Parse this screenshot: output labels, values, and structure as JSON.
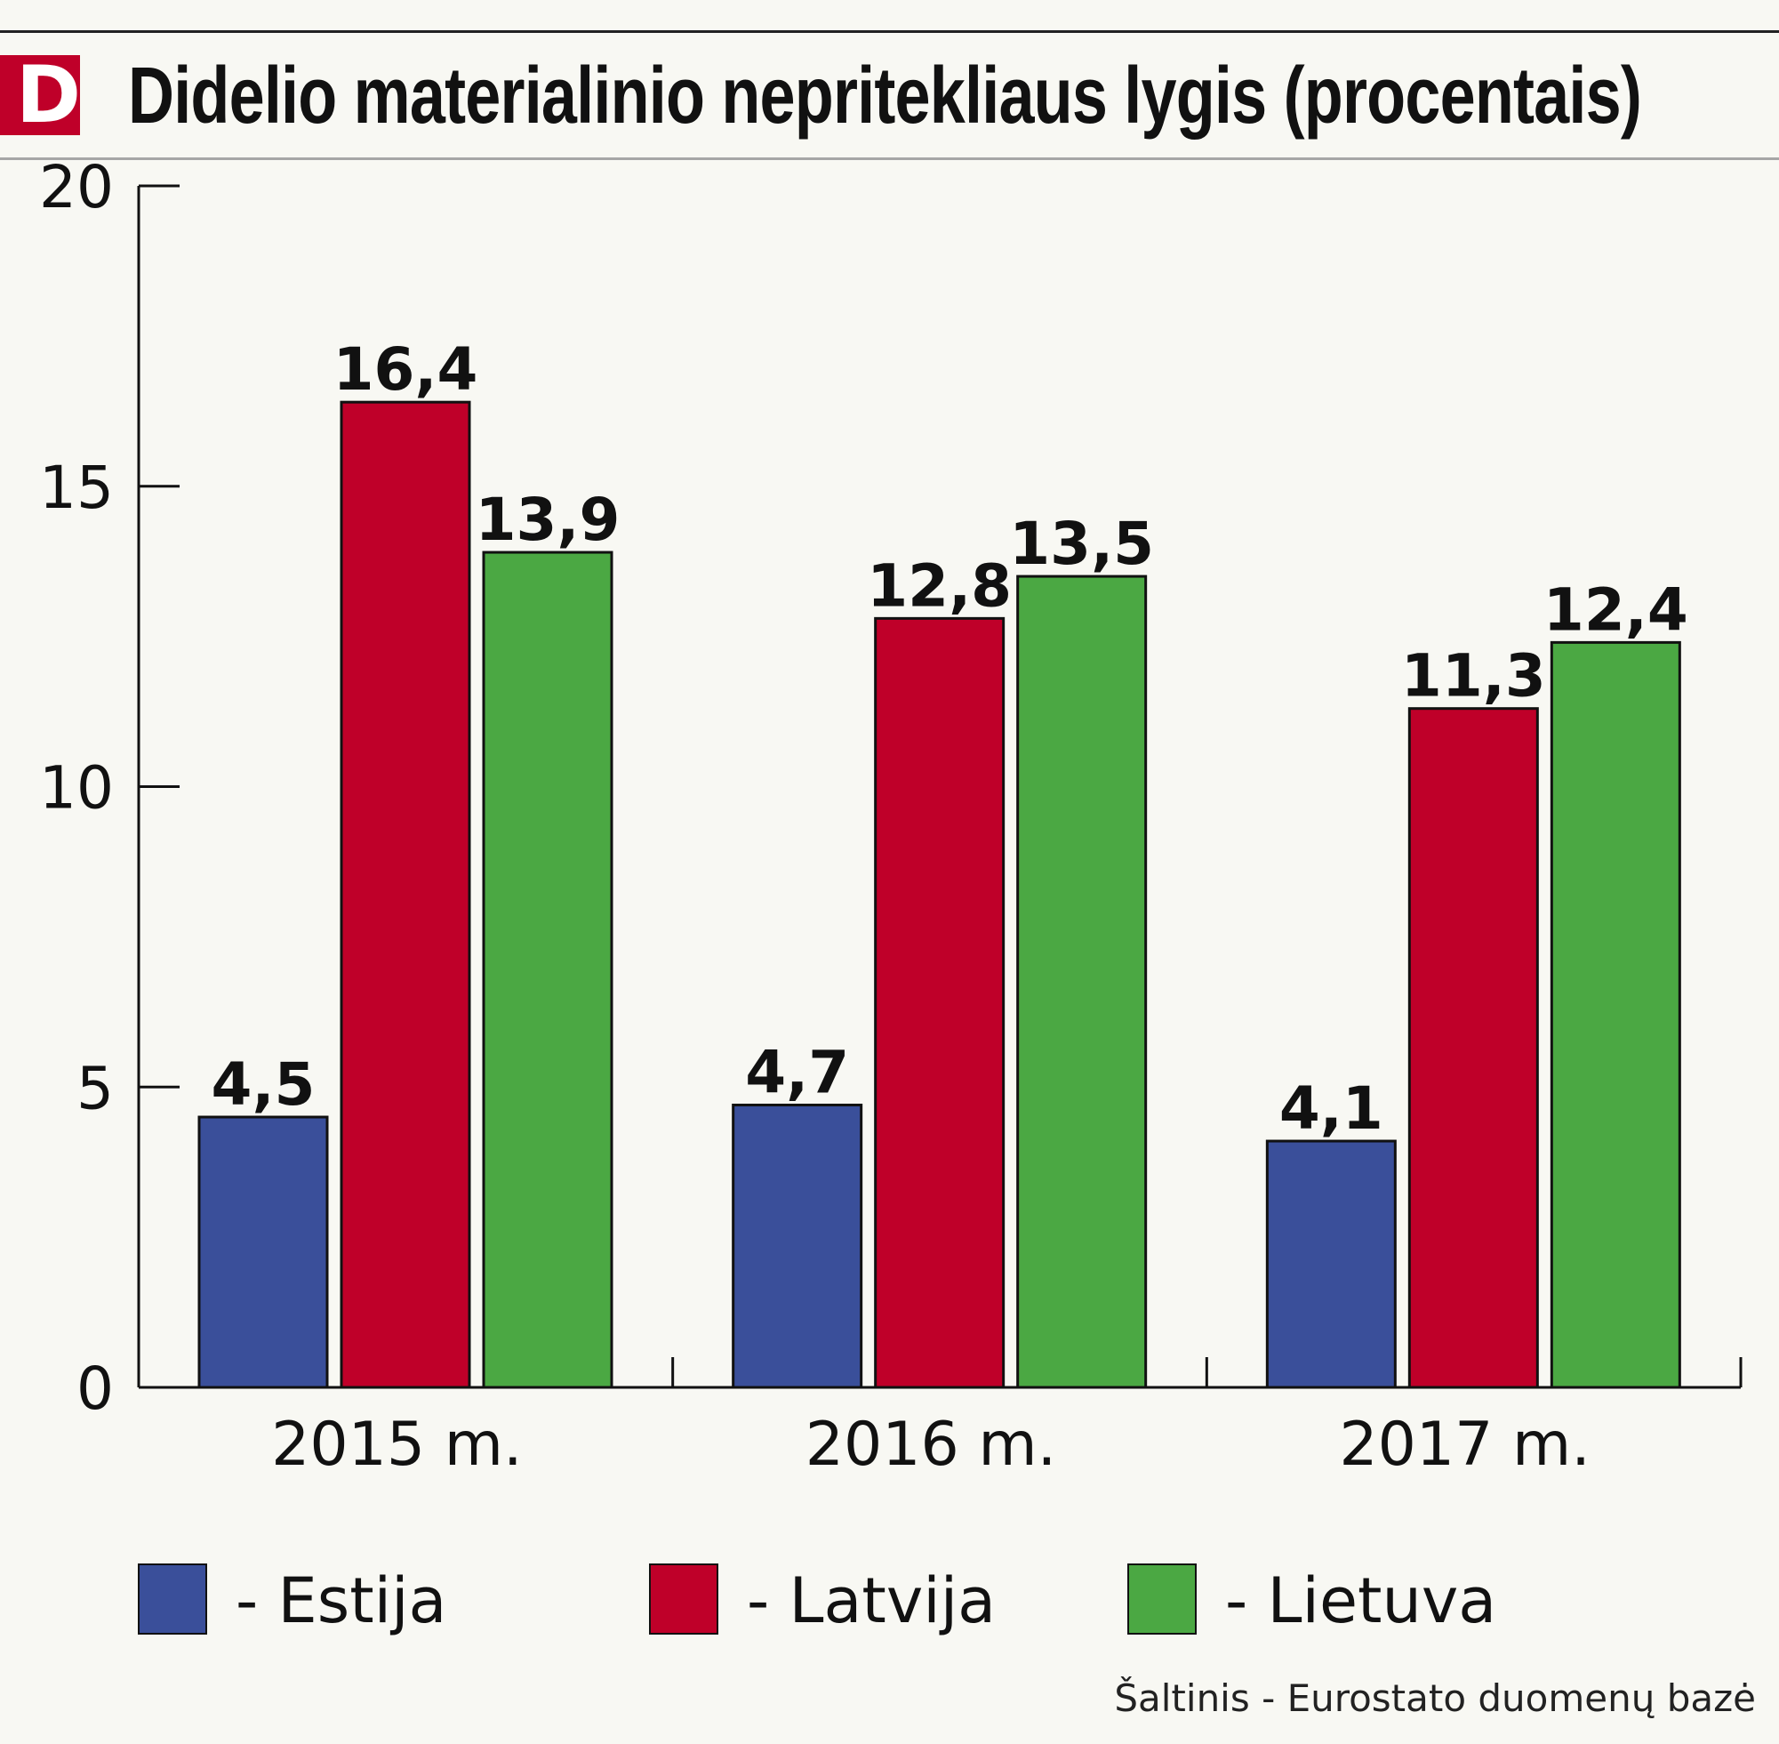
{
  "logo": {
    "letter": "D",
    "color": "#bf0029"
  },
  "chart_data": {
    "type": "bar",
    "title": "Didelio materialinio nepritekliaus lygis (procentais)",
    "categories": [
      "2015 m.",
      "2016 m.",
      "2017 m."
    ],
    "series": [
      {
        "name": "Estija",
        "color": "#3a4f9a",
        "values": [
          4.5,
          4.7,
          4.1
        ],
        "labels": [
          "4,5",
          "4,7",
          "4,1"
        ]
      },
      {
        "name": "Latvija",
        "color": "#bf0029",
        "values": [
          16.4,
          12.8,
          11.3
        ],
        "labels": [
          "16,4",
          "12,8",
          "11,3"
        ]
      },
      {
        "name": "Lietuva",
        "color": "#4ba843",
        "values": [
          13.9,
          13.5,
          12.4
        ],
        "labels": [
          "13,9",
          "13,5",
          "12,4"
        ]
      }
    ],
    "ylim": [
      0,
      20
    ],
    "yticks": [
      0,
      5,
      10,
      15,
      20
    ],
    "ytick_labels": [
      "0",
      "5",
      "10",
      "15",
      "20"
    ],
    "grid": false,
    "legend_position": "bottom"
  },
  "legend": [
    {
      "label": "- Estija",
      "color": "#3a4f9a"
    },
    {
      "label": "- Latvija",
      "color": "#bf0029"
    },
    {
      "label": "- Lietuva",
      "color": "#4ba843"
    }
  ],
  "source": "Šaltinis - Eurostato duomenų bazė"
}
